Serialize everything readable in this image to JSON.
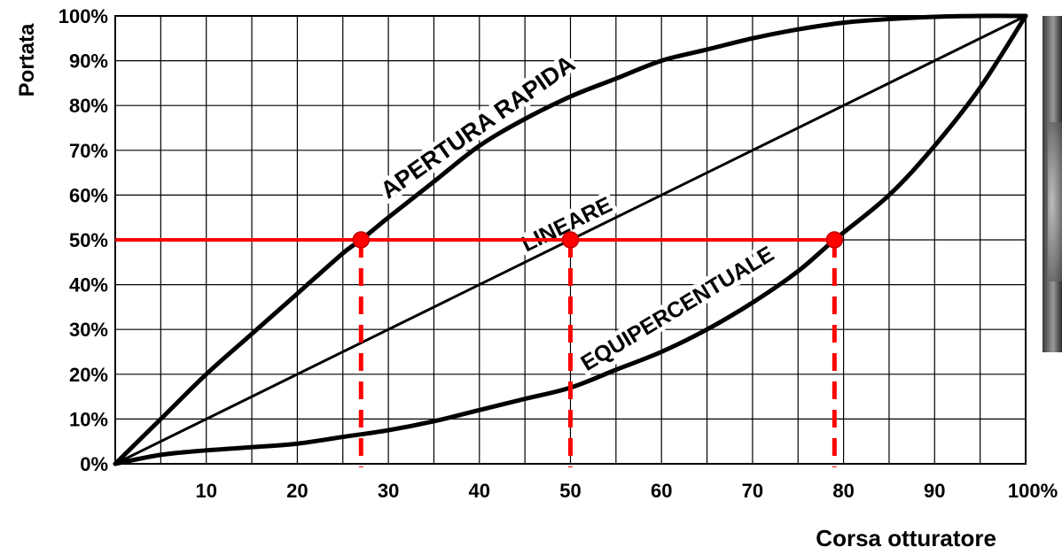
{
  "chart_data": {
    "type": "line",
    "xlabel": "Corsa otturatore",
    "ylabel": "Portata",
    "xlim": [
      0,
      100
    ],
    "ylim": [
      0,
      100
    ],
    "grid": true,
    "x_ticks": [
      "10",
      "20",
      "30",
      "40",
      "50",
      "60",
      "70",
      "80",
      "90",
      "100%"
    ],
    "y_ticks": [
      "0%",
      "10%",
      "20%",
      "30%",
      "40%",
      "50%",
      "60%",
      "70%",
      "80%",
      "90%",
      "100%"
    ],
    "series": [
      {
        "name": "APERTURA RAPIDA",
        "x": [
          0,
          5,
          10,
          15,
          20,
          25,
          27,
          30,
          35,
          40,
          45,
          50,
          55,
          60,
          65,
          70,
          75,
          80,
          85,
          90,
          95,
          100
        ],
        "y": [
          0,
          10,
          20,
          29,
          38,
          47,
          50,
          55,
          63,
          71,
          77,
          82,
          86,
          90,
          92.5,
          95,
          97,
          98.5,
          99.3,
          99.8,
          100,
          100
        ]
      },
      {
        "name": "LINEARE",
        "x": [
          0,
          100
        ],
        "y": [
          0,
          100
        ]
      },
      {
        "name": "EQUIPERCENTUALE",
        "x": [
          0,
          5,
          10,
          15,
          20,
          25,
          30,
          35,
          40,
          45,
          50,
          55,
          60,
          65,
          70,
          75,
          79,
          85,
          90,
          95,
          100
        ],
        "y": [
          0,
          2,
          3,
          3.7,
          4.5,
          6,
          7.5,
          9.5,
          12,
          14.5,
          17,
          21,
          25,
          30,
          36,
          43,
          50,
          60,
          71,
          84,
          100
        ]
      }
    ],
    "reference": {
      "y": 50,
      "points_x": [
        27,
        50,
        79
      ],
      "color": "#ff0000"
    }
  }
}
